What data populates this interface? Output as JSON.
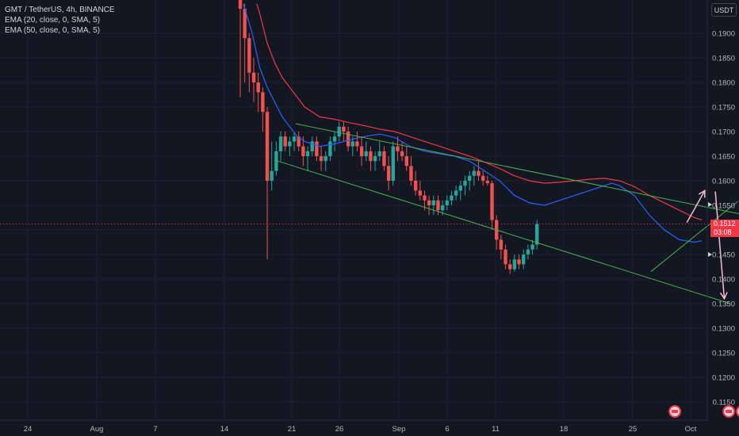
{
  "legend": {
    "symbol": "GMT / TetherUS, 4h, BINANCE",
    "ema1": "EMA (20, close, 0, SMA, 5)",
    "ema2": "EMA (50, close, 0, SMA, 5)"
  },
  "axis": {
    "currency": "USDT"
  },
  "last_price": {
    "value": "0.1512",
    "countdown": "03:08"
  },
  "colors": {
    "background": "#131722",
    "grid": "#1e222d",
    "up": "#26a69a",
    "down": "#ef5350",
    "ema20": "#2962ff",
    "ema50": "#f23645",
    "trendline": "#4caf50",
    "arrow": "#f8bbd0"
  },
  "chart_data": {
    "type": "candlestick",
    "ylim": [
      0.1125,
      0.196
    ],
    "y_ticks": [
      "0.1900",
      "0.1850",
      "0.1800",
      "0.1750",
      "0.1700",
      "0.1650",
      "0.1600",
      "0.1550",
      "0.1500",
      "0.1450",
      "0.1400",
      "0.1350",
      "0.1300",
      "0.1250",
      "0.1200",
      "0.1150"
    ],
    "x_ticks": [
      "24",
      "Aug",
      "7",
      "14",
      "21",
      "26",
      "Sep",
      "6",
      "11",
      "18",
      "25",
      "Oct"
    ],
    "ema20": [
      [
        14.9,
        0.196
      ],
      [
        15.5,
        0.19
      ],
      [
        16,
        0.183
      ],
      [
        16.5,
        0.179
      ],
      [
        17,
        0.176
      ],
      [
        17.5,
        0.173
      ],
      [
        18,
        0.171
      ],
      [
        18.5,
        0.169
      ],
      [
        19,
        0.168
      ],
      [
        20,
        0.167
      ],
      [
        21,
        0.1675
      ],
      [
        22,
        0.1683
      ],
      [
        23,
        0.169
      ],
      [
        24,
        0.1695
      ],
      [
        25,
        0.1688
      ],
      [
        26,
        0.167
      ],
      [
        27,
        0.166
      ],
      [
        28,
        0.1655
      ],
      [
        29,
        0.165
      ],
      [
        30,
        0.164
      ],
      [
        31,
        0.162
      ],
      [
        32,
        0.16
      ],
      [
        33,
        0.157
      ],
      [
        34,
        0.1555
      ],
      [
        35,
        0.155
      ],
      [
        36,
        0.156
      ],
      [
        37,
        0.157
      ],
      [
        38,
        0.158
      ],
      [
        39,
        0.159
      ],
      [
        39.5,
        0.1595
      ],
      [
        40,
        0.159
      ],
      [
        41,
        0.157
      ],
      [
        42,
        0.153
      ],
      [
        43,
        0.15
      ],
      [
        44,
        0.148
      ],
      [
        45,
        0.1475
      ],
      [
        45.5,
        0.1478
      ]
    ],
    "ema50": [
      [
        15.8,
        0.196
      ],
      [
        16,
        0.194
      ],
      [
        16.5,
        0.188
      ],
      [
        17,
        0.184
      ],
      [
        17.5,
        0.181
      ],
      [
        18,
        0.179
      ],
      [
        18.5,
        0.177
      ],
      [
        19,
        0.175
      ],
      [
        20,
        0.173
      ],
      [
        21,
        0.1725
      ],
      [
        22,
        0.1718
      ],
      [
        23,
        0.1712
      ],
      [
        24,
        0.1705
      ],
      [
        25,
        0.17
      ],
      [
        26,
        0.169
      ],
      [
        27,
        0.168
      ],
      [
        28,
        0.167
      ],
      [
        29,
        0.166
      ],
      [
        30,
        0.165
      ],
      [
        31,
        0.1638
      ],
      [
        32,
        0.1625
      ],
      [
        33,
        0.161
      ],
      [
        34,
        0.16
      ],
      [
        35,
        0.1595
      ],
      [
        36,
        0.1597
      ],
      [
        37,
        0.16
      ],
      [
        38,
        0.1603
      ],
      [
        39,
        0.1605
      ],
      [
        40,
        0.16
      ],
      [
        41,
        0.1588
      ],
      [
        42,
        0.157
      ],
      [
        43,
        0.1555
      ],
      [
        44,
        0.154
      ],
      [
        45,
        0.1525
      ],
      [
        45.5,
        0.152
      ]
    ],
    "trendlines": [
      {
        "name": "upper",
        "points": [
          [
            18.4,
            0.1716
          ],
          [
            50.7,
            0.1516
          ]
        ]
      },
      {
        "name": "lower",
        "points": [
          [
            17,
            0.1642
          ],
          [
            47.4,
            0.135
          ]
        ]
      },
      {
        "name": "rising",
        "points": [
          [
            42.1,
            0.1415
          ],
          [
            47.9,
            0.1558
          ]
        ]
      }
    ],
    "arrows": [
      {
        "from": [
          44.5,
          0.1515
        ],
        "to": [
          45.7,
          0.158
        ]
      },
      {
        "from": [
          46.4,
          0.1578
        ],
        "to": [
          47.0,
          0.136
        ]
      }
    ],
    "events": [
      [
        43.7,
        0.1103
      ],
      [
        47.3,
        0.1103
      ],
      [
        48.2,
        0.1103
      ]
    ],
    "candles": [
      [
        14.7,
        0.205,
        0.206,
        0.177,
        0.195
      ],
      [
        15.0,
        0.195,
        0.196,
        0.18,
        0.189
      ],
      [
        15.3,
        0.189,
        0.19,
        0.178,
        0.182
      ],
      [
        15.6,
        0.182,
        0.185,
        0.176,
        0.18
      ],
      [
        15.9,
        0.18,
        0.182,
        0.174,
        0.178
      ],
      [
        16.2,
        0.178,
        0.179,
        0.17,
        0.174
      ],
      [
        16.5,
        0.174,
        0.175,
        0.144,
        0.16
      ],
      [
        16.8,
        0.16,
        0.168,
        0.158,
        0.162
      ],
      [
        17.1,
        0.162,
        0.168,
        0.161,
        0.166
      ],
      [
        17.4,
        0.166,
        0.17,
        0.164,
        0.169
      ],
      [
        17.7,
        0.169,
        0.17,
        0.166,
        0.167
      ],
      [
        18.0,
        0.167,
        0.169,
        0.165,
        0.168
      ],
      [
        18.3,
        0.168,
        0.17,
        0.166,
        0.169
      ],
      [
        18.6,
        0.169,
        0.17,
        0.166,
        0.167
      ],
      [
        18.9,
        0.167,
        0.169,
        0.163,
        0.165
      ],
      [
        19.2,
        0.165,
        0.167,
        0.162,
        0.166
      ],
      [
        19.5,
        0.166,
        0.169,
        0.165,
        0.168
      ],
      [
        19.8,
        0.168,
        0.169,
        0.164,
        0.165
      ],
      [
        20.1,
        0.165,
        0.167,
        0.162,
        0.164
      ],
      [
        20.4,
        0.164,
        0.166,
        0.162,
        0.165
      ],
      [
        20.7,
        0.165,
        0.169,
        0.164,
        0.168
      ],
      [
        21.0,
        0.168,
        0.17,
        0.166,
        0.169
      ],
      [
        21.3,
        0.169,
        0.172,
        0.168,
        0.171
      ],
      [
        21.6,
        0.171,
        0.172,
        0.168,
        0.17
      ],
      [
        21.9,
        0.17,
        0.171,
        0.166,
        0.167
      ],
      [
        22.2,
        0.167,
        0.169,
        0.165,
        0.168
      ],
      [
        22.5,
        0.168,
        0.17,
        0.166,
        0.167
      ],
      [
        22.8,
        0.167,
        0.169,
        0.163,
        0.165
      ],
      [
        23.1,
        0.165,
        0.168,
        0.164,
        0.166
      ],
      [
        23.4,
        0.166,
        0.167,
        0.162,
        0.164
      ],
      [
        23.7,
        0.164,
        0.166,
        0.162,
        0.165
      ],
      [
        24.0,
        0.165,
        0.168,
        0.164,
        0.166
      ],
      [
        24.3,
        0.166,
        0.167,
        0.162,
        0.163
      ],
      [
        24.6,
        0.163,
        0.165,
        0.158,
        0.16
      ],
      [
        24.9,
        0.16,
        0.168,
        0.159,
        0.167
      ],
      [
        25.2,
        0.167,
        0.169,
        0.164,
        0.166
      ],
      [
        25.5,
        0.166,
        0.168,
        0.164,
        0.165
      ],
      [
        25.8,
        0.165,
        0.167,
        0.162,
        0.163
      ],
      [
        26.1,
        0.163,
        0.165,
        0.159,
        0.16
      ],
      [
        26.4,
        0.16,
        0.162,
        0.157,
        0.158
      ],
      [
        26.7,
        0.158,
        0.16,
        0.156,
        0.157
      ],
      [
        27.0,
        0.157,
        0.158,
        0.154,
        0.156
      ],
      [
        27.3,
        0.156,
        0.157,
        0.153,
        0.155
      ],
      [
        27.6,
        0.155,
        0.157,
        0.153,
        0.156
      ],
      [
        27.9,
        0.156,
        0.157,
        0.153,
        0.154
      ],
      [
        28.2,
        0.154,
        0.156,
        0.153,
        0.155
      ],
      [
        28.5,
        0.155,
        0.157,
        0.154,
        0.156
      ],
      [
        28.8,
        0.156,
        0.158,
        0.155,
        0.157
      ],
      [
        29.1,
        0.157,
        0.159,
        0.156,
        0.158
      ],
      [
        29.4,
        0.158,
        0.16,
        0.156,
        0.159
      ],
      [
        29.7,
        0.159,
        0.161,
        0.157,
        0.16
      ],
      [
        30.0,
        0.16,
        0.162,
        0.158,
        0.161
      ],
      [
        30.3,
        0.161,
        0.163,
        0.159,
        0.162
      ],
      [
        30.6,
        0.162,
        0.164,
        0.16,
        0.161
      ],
      [
        30.9,
        0.161,
        0.162,
        0.159,
        0.16
      ],
      [
        31.2,
        0.16,
        0.161,
        0.159,
        0.1595
      ],
      [
        31.5,
        0.1595,
        0.16,
        0.15,
        0.152
      ],
      [
        31.8,
        0.152,
        0.153,
        0.146,
        0.148
      ],
      [
        32.1,
        0.148,
        0.149,
        0.144,
        0.146
      ],
      [
        32.4,
        0.146,
        0.147,
        0.142,
        0.143
      ],
      [
        32.7,
        0.143,
        0.144,
        0.141,
        0.142
      ],
      [
        33.0,
        0.142,
        0.145,
        0.1415,
        0.144
      ],
      [
        33.3,
        0.144,
        0.145,
        0.142,
        0.143
      ],
      [
        33.6,
        0.143,
        0.146,
        0.142,
        0.145
      ],
      [
        33.9,
        0.145,
        0.147,
        0.144,
        0.146
      ],
      [
        34.2,
        0.146,
        0.148,
        0.145,
        0.147
      ],
      [
        34.5,
        0.147,
        0.152,
        0.146,
        0.1512
      ]
    ]
  }
}
